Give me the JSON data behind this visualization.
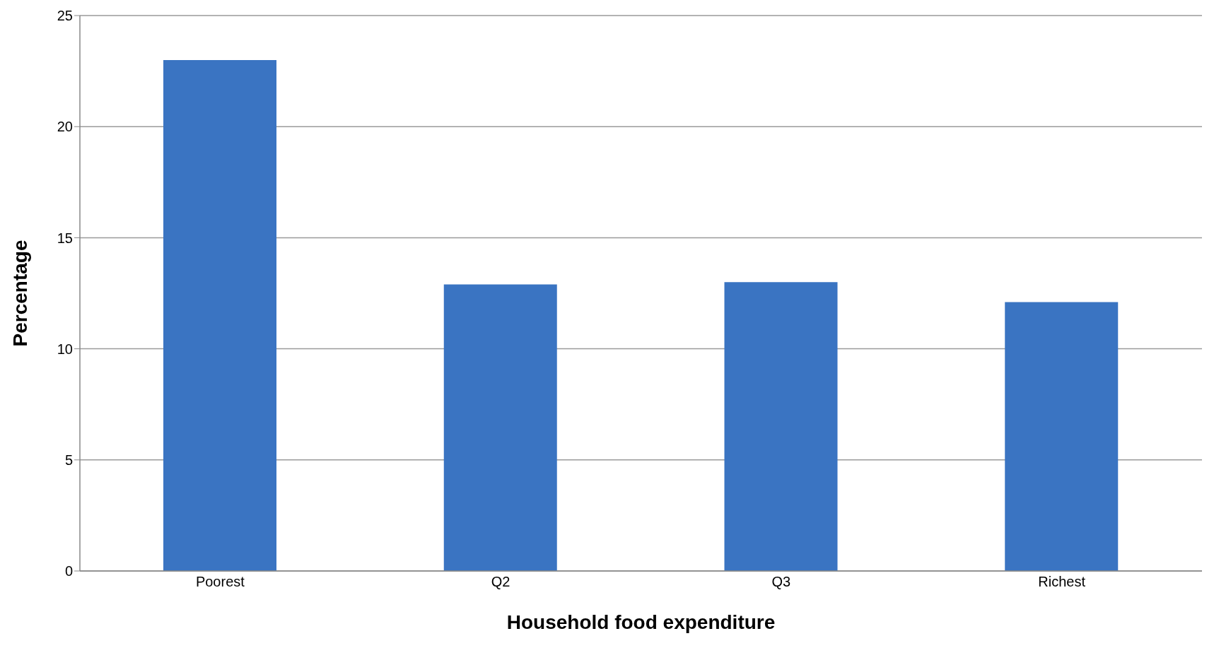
{
  "chart_data": {
    "type": "bar",
    "xlabel": "Household food expenditure",
    "ylabel": "Percentage",
    "categories": [
      "Poorest",
      "Q2",
      "Q3",
      "Richest"
    ],
    "values": [
      23.0,
      12.9,
      13.0,
      12.1
    ],
    "color": "#3a74c2",
    "ylim": [
      0,
      25
    ],
    "yticks": [
      0,
      5,
      10,
      15,
      20,
      25
    ],
    "grid": "y"
  }
}
